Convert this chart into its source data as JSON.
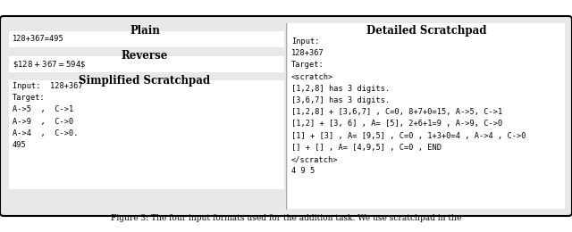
{
  "title_left": "Plain",
  "title_right": "Detailed Scratchpad",
  "plain_text": "128+367=495",
  "reverse_title": "Reverse",
  "reverse_text": "\\$128+367=594\\$",
  "simplified_title": "Simplified Scratchpad",
  "simplified_text": "Input:  128+367\nTarget:\nA->5  ,  C->1\nA->9  ,  C->0\nA->4  ,  C->0.\n495",
  "detailed_text": "Input:\n128+367\nTarget:\n<scratch>\n[1,2,8] has 3 digits.\n[3,6,7] has 3 digits.\n[1,2,8] + [3,6,7] , C=0, 8+7+0=15, A->5, C->1\n[1,2] + [3, 6] , A= [5], 2+6+1=9 , A->9, C->0\n[1] + [3] , A= [9,5] , C=0 , 1+3+0=4 , A->4 , C->0\n[] + [] , A= [4,9,5] , C=0 , END\n</scratch>\n4 9 5",
  "bg_color": "#e8e8e8",
  "white": "#ffffff",
  "border_color": "#000000",
  "title_fontsize": 8.5,
  "mono_fontsize": 6.2,
  "caption": "Figure 3: The four input formats used for the addition task. We use scratchpad in the"
}
